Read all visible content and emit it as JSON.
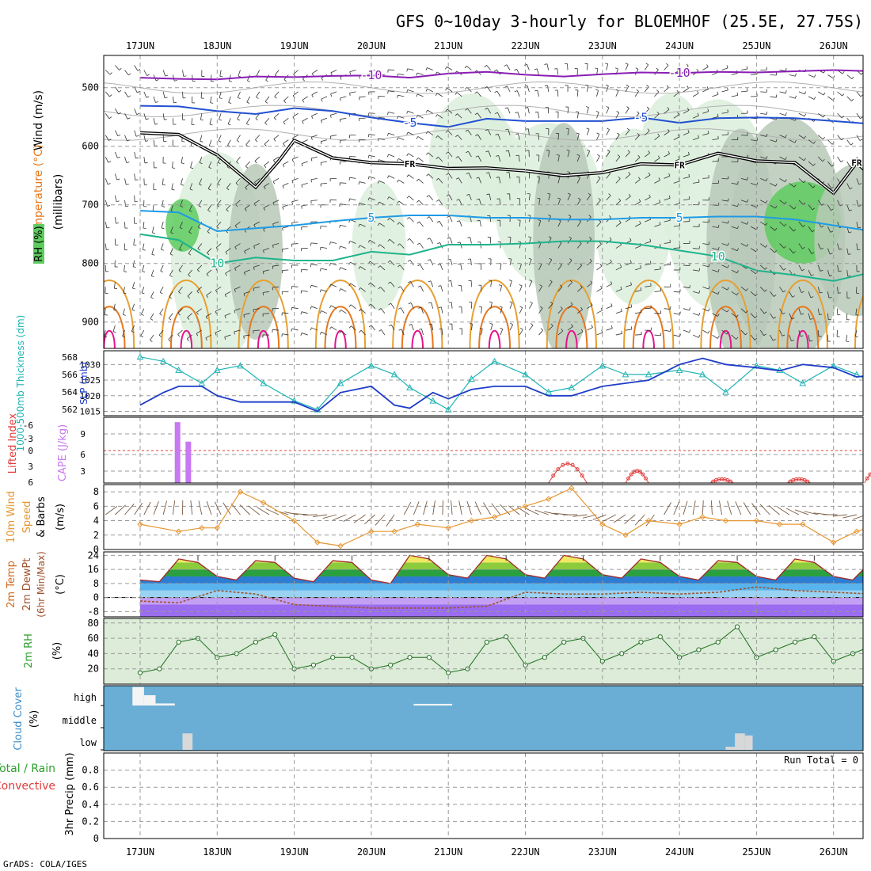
{
  "title": "GFS 0~10day 3-hourly for BLOEMHOF (25.5E, 27.75S)",
  "credit": "GrADS: COLA/IGES",
  "run_total": "Run Total = 0",
  "colors": {
    "rh_green": "#5ecb5e",
    "rh_light": "#dcefdc",
    "rh_gray": "#b8c9b8",
    "temp_purple": "#8a1eb4",
    "temp_blue": "#2250d0",
    "temp_ltblue": "#1e9be6",
    "temp_teal": "#1eb48c",
    "temp_orange": "#e6a032",
    "temp_dkorange": "#e6781e",
    "temp_magenta": "#e6148c",
    "thickness": "#20b4b4",
    "slp": "#1e3cc8",
    "cape": "#c878f0",
    "lifted": "#e03c3c",
    "wind10": "#e69632",
    "dewpt": "#a0522d",
    "cloud_bg": "#6aaed6",
    "cloud_bar": "#d8d8d8"
  },
  "chart_data": [
    {
      "id": "upper_air",
      "type": "line",
      "x_labels": [
        "17JUN",
        "18JUN",
        "19JUN",
        "20JUN",
        "21JUN",
        "22JUN",
        "23JUN",
        "24JUN",
        "25JUN",
        "26JUN"
      ],
      "ylabel_parts": [
        "Wind (m/s)",
        "Temperature (°C)",
        "RH (%)",
        "(millibars)"
      ],
      "yticks": [
        500,
        600,
        700,
        800,
        900
      ],
      "ylim": [
        445,
        945
      ],
      "series": [
        {
          "name": "-10",
          "color": "#8a1eb4",
          "x": [
            0,
            0.5,
            1,
            1.5,
            2,
            2.5,
            3,
            3.5,
            4,
            4.5,
            5,
            5.5,
            6,
            6.5,
            7,
            7.5,
            8,
            8.5,
            9,
            9.5,
            10,
            10.3
          ],
          "values": [
            483,
            485,
            486,
            481,
            482,
            480,
            479,
            483,
            476,
            473,
            478,
            481,
            477,
            474,
            475,
            473,
            474,
            472,
            470,
            472,
            477,
            474
          ]
        },
        {
          "name": "-5",
          "color": "#2250d0",
          "x": [
            0,
            0.5,
            1,
            1.5,
            2,
            2.5,
            3,
            3.5,
            4,
            4.5,
            5,
            5.5,
            6,
            6.5,
            7,
            7.5,
            8,
            8.5,
            9,
            9.5,
            10,
            10.3
          ],
          "values": [
            531,
            532,
            540,
            545,
            535,
            540,
            551,
            560,
            567,
            553,
            557,
            557,
            557,
            551,
            560,
            552,
            551,
            552,
            557,
            562,
            560,
            553
          ]
        },
        {
          "name": "FR",
          "color": "#000000",
          "x": [
            0,
            0.5,
            1,
            1.5,
            1.8,
            2,
            2.5,
            3,
            3.5,
            4,
            4.5,
            5,
            5.5,
            6,
            6.5,
            7,
            7.5,
            8,
            8.5,
            9,
            9.3,
            9.6,
            10,
            10.3
          ],
          "values": [
            577,
            580,
            615,
            670,
            625,
            590,
            620,
            628,
            630,
            638,
            637,
            642,
            650,
            645,
            630,
            632,
            612,
            625,
            628,
            680,
            628,
            665,
            630,
            622
          ]
        },
        {
          "name": "5",
          "color": "#1e9be6",
          "x": [
            0,
            0.5,
            1,
            1.5,
            2,
            2.5,
            3,
            3.5,
            4,
            4.5,
            5,
            5.5,
            6,
            6.5,
            7,
            7.5,
            8,
            8.5,
            9,
            9.5,
            10,
            10.3
          ],
          "values": [
            710,
            713,
            745,
            740,
            735,
            728,
            722,
            718,
            718,
            722,
            722,
            725,
            725,
            722,
            722,
            720,
            720,
            725,
            735,
            745,
            740,
            743
          ]
        },
        {
          "name": "10",
          "color": "#1eb48c",
          "x": [
            0,
            0.5,
            1,
            1.5,
            2,
            2.5,
            3,
            3.5,
            4,
            4.5,
            5,
            5.5,
            6,
            6.5,
            7,
            7.5,
            8,
            8.5,
            9,
            9.5,
            10,
            10.3
          ],
          "values": [
            750,
            760,
            800,
            790,
            795,
            795,
            780,
            785,
            768,
            768,
            766,
            762,
            762,
            768,
            778,
            788,
            812,
            820,
            830,
            815,
            810,
            860
          ]
        }
      ]
    },
    {
      "id": "thickness_slp",
      "type": "line",
      "x_labels": [
        "17JUN",
        "18JUN",
        "19JUN",
        "20JUN",
        "21JUN",
        "22JUN",
        "23JUN",
        "24JUN",
        "25JUN",
        "26JUN"
      ],
      "ylabel_left": "1000-500mb Thickness (dm)",
      "ylabel_right": "SLP (mb)",
      "left_ticks": [
        562,
        564,
        566,
        568
      ],
      "left_range": [
        561.3,
        568.7
      ],
      "right_ticks": [
        1015,
        1020,
        1025,
        1030
      ],
      "right_range": [
        1013.6,
        1034.4
      ],
      "series": [
        {
          "name": "Thickness",
          "axis": "left",
          "color": "#20b4b4",
          "x": [
            0,
            0.3,
            0.5,
            0.8,
            1,
            1.3,
            1.6,
            2,
            2.3,
            2.6,
            3,
            3.3,
            3.5,
            3.8,
            4,
            4.3,
            4.6,
            5,
            5.3,
            5.6,
            6,
            6.3,
            6.6,
            7,
            7.3,
            7.6,
            8,
            8.3,
            8.6,
            9,
            9.3,
            9.6,
            10,
            10.3
          ],
          "values": [
            568,
            567.5,
            566.5,
            565,
            566.5,
            567,
            565,
            563,
            562,
            565,
            567,
            566,
            564.5,
            563,
            562,
            565.5,
            567.5,
            566,
            564,
            564.5,
            567,
            566,
            566,
            566.5,
            566,
            564,
            567,
            566.5,
            565,
            567,
            566,
            564.5,
            562.5,
            562
          ]
        },
        {
          "name": "SLP",
          "axis": "right",
          "color": "#1e3cc8",
          "x": [
            0,
            0.3,
            0.5,
            0.8,
            1,
            1.3,
            1.6,
            2,
            2.3,
            2.6,
            3,
            3.3,
            3.5,
            3.8,
            4,
            4.3,
            4.6,
            5,
            5.3,
            5.6,
            6,
            6.3,
            6.6,
            7,
            7.3,
            7.6,
            8,
            8.3,
            8.6,
            9,
            9.3,
            9.6,
            10,
            10.3
          ],
          "values": [
            1017,
            1021,
            1023,
            1023,
            1020,
            1018,
            1018,
            1018,
            1015,
            1021,
            1023,
            1017,
            1016,
            1021,
            1019,
            1022,
            1023,
            1023,
            1020,
            1020,
            1023,
            1024,
            1025,
            1030,
            1032,
            1030,
            1029,
            1028,
            1030,
            1029,
            1026,
            1027,
            1028,
            1030
          ]
        }
      ]
    },
    {
      "id": "cape_li",
      "type": "bar",
      "x_labels": [
        "17JUN",
        "18JUN",
        "19JUN",
        "20JUN",
        "21JUN",
        "22JUN",
        "23JUN",
        "24JUN",
        "25JUN",
        "26JUN"
      ],
      "ylabel_left": "Lifted Index",
      "ylabel_right": "CAPE (J/kg)",
      "left_ticks": [
        "-6",
        "-3",
        "0",
        "3",
        "6"
      ],
      "right_ticks": [
        "3",
        "6",
        "9"
      ],
      "cape_range": [
        0,
        13.5
      ],
      "bars": [
        {
          "x": 0.48,
          "value": 12.5
        },
        {
          "x": 0.62,
          "value": 8.5
        }
      ],
      "li_humps": [
        {
          "x_start": 5.3,
          "x_end": 5.8,
          "peak": 4.0
        },
        {
          "x_start": 6.3,
          "x_end": 6.6,
          "peak": 2.5
        },
        {
          "x_start": 7.4,
          "x_end": 7.7,
          "peak": 0.8
        },
        {
          "x_start": 8.4,
          "x_end": 8.7,
          "peak": 0.8
        },
        {
          "x_start": 9.4,
          "x_end": 9.7,
          "peak": 2.5
        }
      ]
    },
    {
      "id": "wind10m",
      "type": "line",
      "x_labels": [
        "17JUN",
        "18JUN",
        "19JUN",
        "20JUN",
        "21JUN",
        "22JUN",
        "23JUN",
        "24JUN",
        "25JUN",
        "26JUN"
      ],
      "ylabel": "10m Wind Speed & Barbs (m/s)",
      "yticks": [
        0,
        2,
        4,
        6,
        8
      ],
      "ylim": [
        0,
        9
      ],
      "series": [
        {
          "name": "Speed",
          "color": "#e69632",
          "x": [
            0,
            0.5,
            0.8,
            1,
            1.3,
            1.6,
            2,
            2.3,
            2.6,
            3,
            3.3,
            3.6,
            4,
            4.3,
            4.6,
            5,
            5.3,
            5.6,
            6,
            6.3,
            6.6,
            7,
            7.3,
            7.6,
            8,
            8.3,
            8.6,
            9,
            9.3,
            9.6,
            10,
            10.3
          ],
          "values": [
            3.5,
            2.5,
            3,
            3,
            8,
            6.5,
            4,
            1,
            0.5,
            2.5,
            2.5,
            3.5,
            3,
            4,
            4.5,
            6,
            7,
            8.5,
            3.5,
            2,
            4,
            3.5,
            4.5,
            4,
            4,
            3.5,
            3.5,
            1,
            2.5,
            3.5,
            3.5,
            4.5
          ]
        }
      ]
    },
    {
      "id": "temp2m",
      "type": "area",
      "x_labels": [
        "17JUN",
        "18JUN",
        "19JUN",
        "20JUN",
        "21JUN",
        "22JUN",
        "23JUN",
        "24JUN",
        "25JUN",
        "26JUN"
      ],
      "ylabel_parts": [
        "2m Temp",
        "2m DewPt",
        "(6hr Min/Max)",
        "(°C)"
      ],
      "yticks": [
        -8,
        0,
        8,
        16,
        24
      ],
      "ylim": [
        -11,
        26
      ],
      "series": [
        {
          "name": "Temp",
          "color": "#a0282d",
          "x": [
            0,
            0.25,
            0.5,
            0.75,
            1,
            1.25,
            1.5,
            1.75,
            2,
            2.25,
            2.5,
            2.75,
            3,
            3.25,
            3.5,
            3.75,
            4,
            4.25,
            4.5,
            4.75,
            5,
            5.25,
            5.5,
            5.75,
            6,
            6.25,
            6.5,
            6.75,
            7,
            7.25,
            7.5,
            7.75,
            8,
            8.25,
            8.5,
            8.75,
            9,
            9.25,
            9.5,
            9.75,
            10,
            10.3
          ],
          "values": [
            10,
            9,
            22,
            20,
            12,
            10,
            21,
            20,
            11,
            9,
            21,
            20,
            10,
            8,
            24,
            22,
            13,
            11,
            24,
            22,
            13,
            11,
            24,
            22,
            13,
            11,
            22,
            20,
            12,
            10,
            21,
            20,
            12,
            10,
            22,
            20,
            12,
            10,
            21,
            20,
            10,
            9
          ]
        },
        {
          "name": "DewPt",
          "color": "#a0522d",
          "x": [
            0,
            0.5,
            1,
            1.5,
            2,
            2.5,
            3,
            3.5,
            4,
            4.5,
            5,
            5.5,
            6,
            6.5,
            7,
            7.5,
            8,
            8.5,
            9,
            9.5,
            10,
            10.3
          ],
          "values": [
            -2,
            -3,
            4,
            2,
            -4,
            -5,
            -6,
            -6,
            -6,
            -5,
            3,
            2,
            2,
            3,
            2,
            3,
            6,
            4,
            3,
            2,
            3,
            7
          ]
        }
      ]
    },
    {
      "id": "rh2m",
      "type": "area",
      "x_labels": [
        "17JUN",
        "18JUN",
        "19JUN",
        "20JUN",
        "21JUN",
        "22JUN",
        "23JUN",
        "24JUN",
        "25JUN",
        "26JUN"
      ],
      "ylabel": "2m RH (%)",
      "yticks": [
        20,
        40,
        60,
        80
      ],
      "ylim": [
        0,
        86
      ],
      "series": [
        {
          "name": "RH",
          "color": "#2ca02c",
          "x": [
            0,
            0.25,
            0.5,
            0.75,
            1,
            1.25,
            1.5,
            1.75,
            2,
            2.25,
            2.5,
            2.75,
            3,
            3.25,
            3.5,
            3.75,
            4,
            4.25,
            4.5,
            4.75,
            5,
            5.25,
            5.5,
            5.75,
            6,
            6.25,
            6.5,
            6.75,
            7,
            7.25,
            7.5,
            7.75,
            8,
            8.25,
            8.5,
            8.75,
            9,
            9.25,
            9.5,
            9.75,
            10,
            10.3
          ],
          "values": [
            15,
            20,
            55,
            60,
            35,
            40,
            55,
            65,
            20,
            25,
            35,
            35,
            20,
            25,
            35,
            35,
            15,
            20,
            55,
            62,
            25,
            35,
            55,
            60,
            30,
            40,
            55,
            62,
            35,
            45,
            55,
            75,
            35,
            45,
            55,
            62,
            30,
            40,
            50,
            60,
            65,
            82
          ]
        }
      ]
    },
    {
      "id": "cloud",
      "type": "bar",
      "x_labels": [
        "17JUN",
        "18JUN",
        "19JUN",
        "20JUN",
        "21JUN",
        "22JUN",
        "23JUN",
        "24JUN",
        "25JUN",
        "26JUN"
      ],
      "ylabel": "Cloud Cover (%)",
      "levels": [
        "high",
        "middle",
        "low"
      ],
      "segments": [
        {
          "level": "high",
          "x_start": -0.1,
          "x_end": 0.05,
          "fill": 0.9
        },
        {
          "level": "high",
          "x_start": 0.05,
          "x_end": 0.2,
          "fill": 0.5
        },
        {
          "level": "high",
          "x_start": 0.2,
          "x_end": 0.45,
          "fill": 0.1
        },
        {
          "level": "high",
          "x_start": 3.55,
          "x_end": 4.05,
          "fill": 0.08
        },
        {
          "level": "low",
          "x_start": 0.55,
          "x_end": 0.68,
          "fill": 0.8
        },
        {
          "level": "low",
          "x_start": 7.6,
          "x_end": 7.75,
          "fill": 0.15
        },
        {
          "level": "low",
          "x_start": 7.72,
          "x_end": 7.85,
          "fill": 0.8
        },
        {
          "level": "low",
          "x_start": 7.85,
          "x_end": 7.95,
          "fill": 0.7
        }
      ]
    },
    {
      "id": "precip",
      "type": "bar",
      "x_labels": [
        "17JUN",
        "18JUN",
        "19JUN",
        "20JUN",
        "21JUN",
        "22JUN",
        "23JUN",
        "24JUN",
        "25JUN",
        "26JUN"
      ],
      "ylabel_parts": [
        "Total / Rain",
        "Convective",
        "3hr Precip (mm)"
      ],
      "yticks": [
        "0",
        "0.2",
        "0.4",
        "0.6",
        "0.8"
      ],
      "ylim": [
        0,
        1
      ],
      "values": []
    }
  ]
}
